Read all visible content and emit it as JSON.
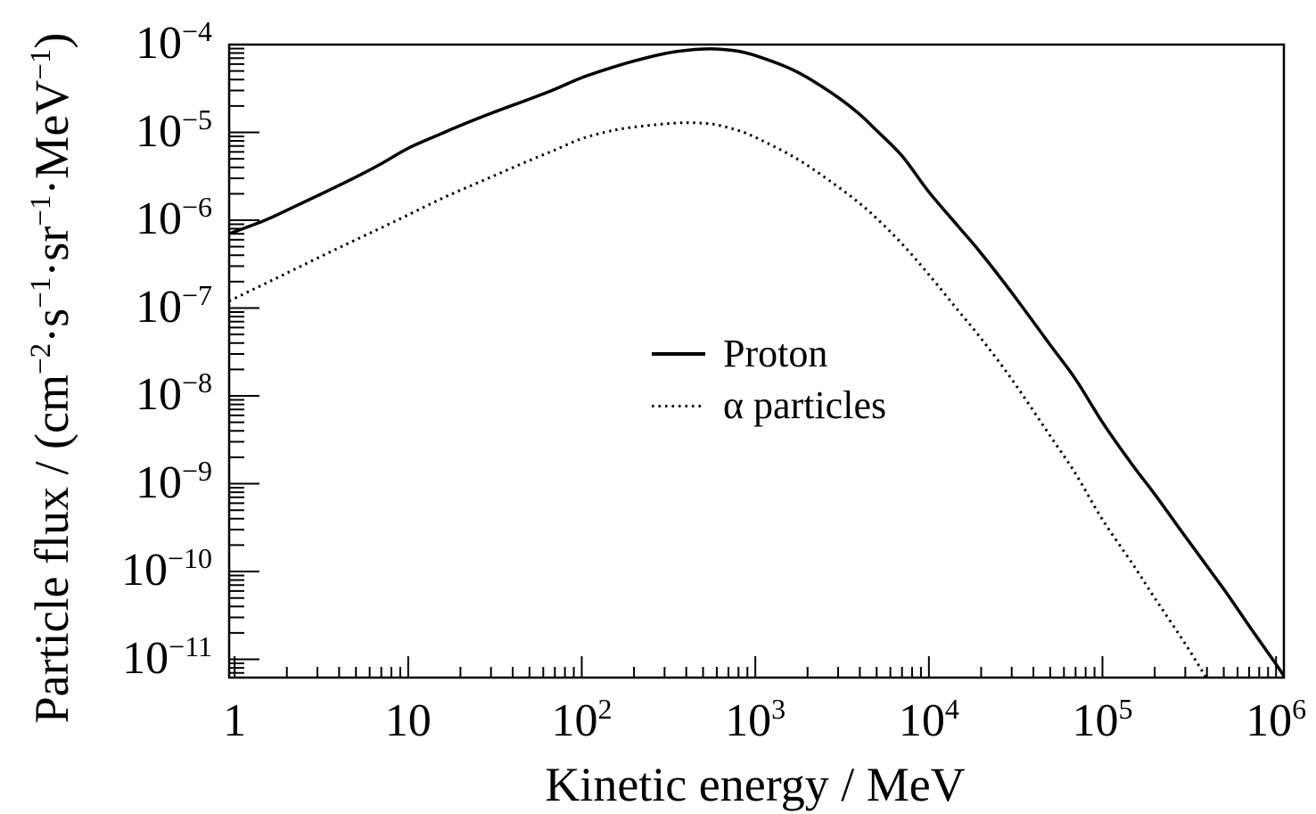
{
  "chart_data": {
    "type": "line",
    "title": "",
    "xlabel": "Kinetic energy / MeV",
    "ylabel": "Particle flux / (cm−2·s−1·sr−1·MeV−1)",
    "ylabel_parts": [
      {
        "t": "Particle flux / (cm"
      },
      {
        "s": "−2"
      },
      {
        "t": "·s"
      },
      {
        "s": "−1"
      },
      {
        "t": "·sr"
      },
      {
        "s": "−1"
      },
      {
        "t": "·MeV"
      },
      {
        "s": "−1"
      },
      {
        "t": ")"
      }
    ],
    "x_scale": "log",
    "y_scale": "log",
    "xlim": [
      0.93,
      1110000
    ],
    "ylim": [
      6.2e-12,
      0.0001
    ],
    "grid": false,
    "axis_color": "#000000",
    "background": "#ffffff",
    "x_ticks": [
      {
        "base": "1",
        "exp": "",
        "value": 1
      },
      {
        "base": "10",
        "exp": "",
        "value": 10
      },
      {
        "base": "10",
        "exp": "2",
        "value": 100
      },
      {
        "base": "10",
        "exp": "3",
        "value": 1000
      },
      {
        "base": "10",
        "exp": "4",
        "value": 10000
      },
      {
        "base": "10",
        "exp": "5",
        "value": 100000
      },
      {
        "base": "10",
        "exp": "6",
        "value": 1000000
      }
    ],
    "y_ticks": [
      {
        "base": "10",
        "exp": "−4",
        "value": 0.0001
      },
      {
        "base": "10",
        "exp": "−5",
        "value": 1e-05
      },
      {
        "base": "10",
        "exp": "−6",
        "value": 1e-06
      },
      {
        "base": "10",
        "exp": "−7",
        "value": 1e-07
      },
      {
        "base": "10",
        "exp": "−8",
        "value": 1e-08
      },
      {
        "base": "10",
        "exp": "−9",
        "value": 1e-09
      },
      {
        "base": "10",
        "exp": "−10",
        "value": 1e-10
      },
      {
        "base": "10",
        "exp": "−11",
        "value": 1e-11
      }
    ],
    "legend": {
      "position": "inside-center",
      "items": [
        {
          "label": "Proton",
          "line_style": "solid"
        },
        {
          "label": "α particles",
          "line_style": "dotted"
        }
      ]
    },
    "series": [
      {
        "name": "Proton",
        "line_style": "solid",
        "color": "#000000",
        "points": [
          [
            0.93,
            7e-07
          ],
          [
            1.5,
            1e-06
          ],
          [
            2,
            1.3e-06
          ],
          [
            3,
            1.9e-06
          ],
          [
            5,
            3.1e-06
          ],
          [
            7,
            4.4e-06
          ],
          [
            10,
            6.6e-06
          ],
          [
            15,
            9.4e-06
          ],
          [
            20,
            1.2e-05
          ],
          [
            30,
            1.65e-05
          ],
          [
            50,
            2.4e-05
          ],
          [
            70,
            3.1e-05
          ],
          [
            100,
            4.2e-05
          ],
          [
            150,
            5.5e-05
          ],
          [
            200,
            6.5e-05
          ],
          [
            300,
            7.9e-05
          ],
          [
            400,
            8.6e-05
          ],
          [
            500,
            8.9e-05
          ],
          [
            600,
            8.9e-05
          ],
          [
            800,
            8.4e-05
          ],
          [
            1000,
            7.5e-05
          ],
          [
            1500,
            5.6e-05
          ],
          [
            2000,
            4.2e-05
          ],
          [
            3000,
            2.5e-05
          ],
          [
            4000,
            1.6e-05
          ],
          [
            5000,
            1.05e-05
          ],
          [
            7000,
            5.4e-06
          ],
          [
            10000,
            2.1e-06
          ],
          [
            15000,
            8.2e-07
          ],
          [
            20000,
            4.2e-07
          ],
          [
            30000,
            1.5e-07
          ],
          [
            50000,
            3.8e-08
          ],
          [
            70000,
            1.55e-08
          ],
          [
            100000,
            5e-09
          ],
          [
            150000,
            1.6e-09
          ],
          [
            200000,
            7.6e-10
          ],
          [
            300000,
            2.5e-10
          ],
          [
            500000,
            6.3e-11
          ],
          [
            700000,
            2.4e-11
          ],
          [
            1000000,
            8.8e-12
          ],
          [
            1150000,
            5.8e-12
          ]
        ]
      },
      {
        "name": "α particles",
        "line_style": "dotted",
        "color": "#000000",
        "points": [
          [
            0.93,
            1.2e-07
          ],
          [
            1.5,
            1.9e-07
          ],
          [
            2,
            2.5e-07
          ],
          [
            3,
            3.7e-07
          ],
          [
            5,
            6e-07
          ],
          [
            7,
            8.2e-07
          ],
          [
            10,
            1.15e-06
          ],
          [
            15,
            1.7e-06
          ],
          [
            20,
            2.2e-06
          ],
          [
            30,
            3.1e-06
          ],
          [
            50,
            4.8e-06
          ],
          [
            70,
            6.3e-06
          ],
          [
            100,
            8.5e-06
          ],
          [
            150,
            1.05e-05
          ],
          [
            200,
            1.15e-05
          ],
          [
            300,
            1.25e-05
          ],
          [
            400,
            1.29e-05
          ],
          [
            500,
            1.27e-05
          ],
          [
            600,
            1.22e-05
          ],
          [
            800,
            1.05e-05
          ],
          [
            1000,
            8.8e-06
          ],
          [
            1500,
            5.9e-06
          ],
          [
            2000,
            4.2e-06
          ],
          [
            3000,
            2.4e-06
          ],
          [
            4000,
            1.55e-06
          ],
          [
            5000,
            1.05e-06
          ],
          [
            7000,
            5.4e-07
          ],
          [
            10000,
            2.4e-07
          ],
          [
            15000,
            9e-08
          ],
          [
            20000,
            4.5e-08
          ],
          [
            30000,
            1.55e-08
          ],
          [
            50000,
            3.5e-09
          ],
          [
            70000,
            1.3e-09
          ],
          [
            100000,
            3.9e-10
          ],
          [
            150000,
            1.2e-10
          ],
          [
            200000,
            5e-11
          ],
          [
            300000,
            1.5e-11
          ],
          [
            400000,
            6e-12
          ]
        ]
      }
    ]
  }
}
